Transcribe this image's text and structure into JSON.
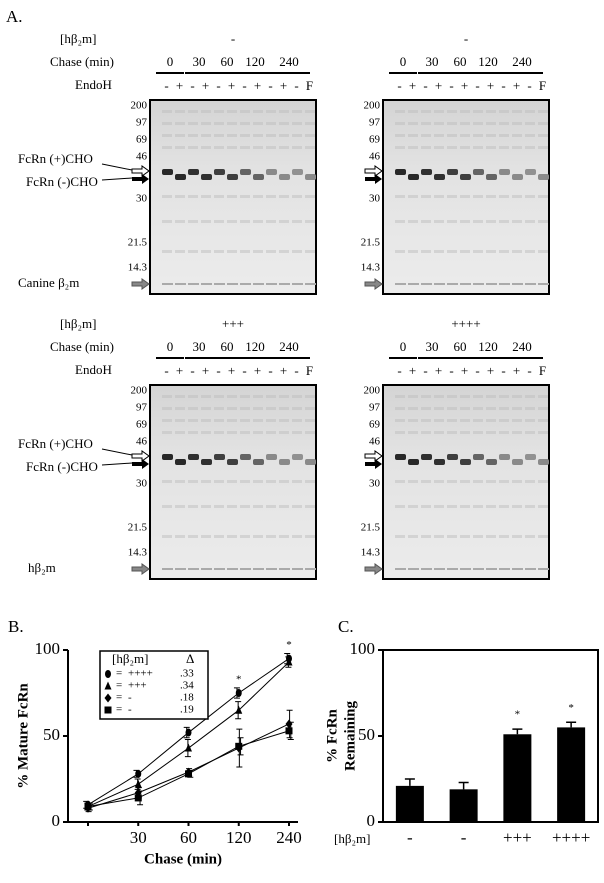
{
  "panel_a": {
    "label": "A.",
    "gels": [
      {
        "row_labels": [
          "[hβ₂m]",
          "Chase (min)",
          "EndoH"
        ],
        "condition": "-",
        "chase": [
          "0",
          "30",
          "60",
          "120",
          "240"
        ],
        "endoh": [
          "-",
          "+",
          "-",
          "+",
          "-",
          "+",
          "-",
          "+",
          "-",
          "+",
          "-",
          "F"
        ],
        "markers": [
          "200",
          "97",
          "69",
          "46",
          "30",
          "21.5",
          "14.3"
        ],
        "band_labels": [
          "FcRn (+)CHO",
          "FcRn (-)CHO",
          "Canine β₂m"
        ]
      },
      {
        "condition": "-",
        "chase": [
          "0",
          "30",
          "60",
          "120",
          "240"
        ],
        "endoh": [
          "-",
          "+",
          "-",
          "+",
          "-",
          "+",
          "-",
          "+",
          "-",
          "+",
          "-",
          "F"
        ],
        "markers": [
          "200",
          "97",
          "69",
          "46",
          "30",
          "21.5",
          "14.3"
        ]
      },
      {
        "row_labels": [
          "[hβ₂m]",
          "Chase (min)",
          "EndoH"
        ],
        "condition": "+++",
        "chase": [
          "0",
          "30",
          "60",
          "120",
          "240"
        ],
        "endoh": [
          "-",
          "+",
          "-",
          "+",
          "-",
          "+",
          "-",
          "+",
          "-",
          "+",
          "-",
          "F"
        ],
        "markers": [
          "200",
          "97",
          "69",
          "46",
          "30",
          "21.5",
          "14.3"
        ],
        "band_labels": [
          "FcRn (+)CHO",
          "FcRn (-)CHO",
          "hβ₂m"
        ]
      },
      {
        "condition": "++++",
        "chase": [
          "0",
          "30",
          "60",
          "120",
          "240"
        ],
        "endoh": [
          "-",
          "+",
          "-",
          "+",
          "-",
          "+",
          "-",
          "+",
          "-",
          "+",
          "-",
          "F"
        ],
        "markers": [
          "200",
          "97",
          "69",
          "46",
          "30",
          "21.5",
          "14.3"
        ]
      }
    ]
  },
  "chart_data": [
    {
      "type": "line",
      "panel_label": "B.",
      "xlabel": "Chase (min)",
      "ylabel": "% Mature FcRn",
      "categories": [
        null,
        "30",
        "60",
        "120",
        "240"
      ],
      "ylim": [
        0,
        100
      ],
      "yticks": [
        0,
        50,
        100
      ],
      "legend_header": [
        "[hβ₂m]",
        "Δ"
      ],
      "legend_delta": [
        ".33",
        ".34",
        ".18",
        ".19"
      ],
      "annotations": [
        "*",
        "*"
      ],
      "series": [
        {
          "name": "++++",
          "marker": "circle",
          "color": "#000000",
          "values": [
            10,
            28,
            52,
            75,
            95
          ],
          "errors": [
            2,
            2,
            3,
            3,
            3
          ]
        },
        {
          "name": "+++",
          "marker": "triangle",
          "color": "#000000",
          "values": [
            9,
            22,
            43,
            65,
            93
          ],
          "errors": [
            2,
            3,
            5,
            5,
            3
          ]
        },
        {
          "name": "-",
          "marker": "diamond",
          "color": "#000000",
          "values": [
            8,
            17,
            29,
            43,
            57
          ],
          "errors": [
            2,
            3,
            2,
            11,
            8
          ]
        },
        {
          "name": "-",
          "marker": "square",
          "color": "#000000",
          "values": [
            9,
            14,
            28,
            44,
            53
          ],
          "errors": [
            2,
            4,
            2,
            5,
            5
          ]
        }
      ]
    },
    {
      "type": "bar",
      "panel_label": "C.",
      "xlabel": "[hβ₂m]",
      "ylabel": [
        "% FcRn",
        "Remaining"
      ],
      "categories": [
        "-",
        "-",
        "+++",
        "++++"
      ],
      "values": [
        21,
        19,
        51,
        55
      ],
      "errors": [
        4,
        4,
        3,
        3
      ],
      "color": "#000000",
      "ylim": [
        0,
        100
      ],
      "yticks": [
        0,
        50,
        100
      ],
      "annotations": [
        "*",
        "*"
      ]
    }
  ]
}
